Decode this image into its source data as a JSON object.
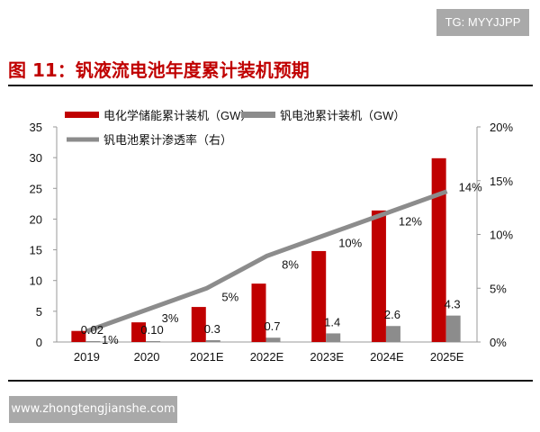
{
  "watermark_top": "TG: MYYJJPP",
  "watermark_bottom": "www.zhongtengjianshe.com",
  "chart_data": {
    "type": "bar",
    "title": "图 11：钒液流电池年度累计装机预期",
    "categories": [
      "2019",
      "2020",
      "2021E",
      "2022E",
      "2023E",
      "2024E",
      "2025E"
    ],
    "left_axis": {
      "ylim": [
        0,
        35
      ],
      "ticks": [
        "0",
        "5",
        "10",
        "15",
        "20",
        "25",
        "30",
        "35"
      ]
    },
    "right_axis": {
      "ylim": [
        0,
        20
      ],
      "ticks": [
        "0%",
        "5%",
        "10%",
        "15%",
        "20%"
      ]
    },
    "series": [
      {
        "name": "电化学储能累计装机（GW）",
        "type": "bar",
        "axis": "left",
        "color": "#c00000",
        "values": [
          1.8,
          3.2,
          5.7,
          9.5,
          14.8,
          21.4,
          29.9
        ]
      },
      {
        "name": "钒电池累计装机（GW）",
        "type": "bar",
        "axis": "left",
        "color": "#8c8c8c",
        "values": [
          0.02,
          0.1,
          0.3,
          0.7,
          1.4,
          2.6,
          4.3
        ],
        "labels": [
          "0.02",
          "0.10",
          "0.3",
          "0.7",
          "1.4",
          "2.6",
          "4.3"
        ]
      },
      {
        "name": "钒电池累计渗透率（右）",
        "type": "line",
        "axis": "right",
        "color": "#8c8c8c",
        "values": [
          1,
          3,
          5,
          8,
          10,
          12,
          14
        ],
        "labels": [
          "1%",
          "3%",
          "5%",
          "8%",
          "10%",
          "12%",
          "14%"
        ]
      }
    ],
    "legend": "top-left",
    "grid": false
  }
}
